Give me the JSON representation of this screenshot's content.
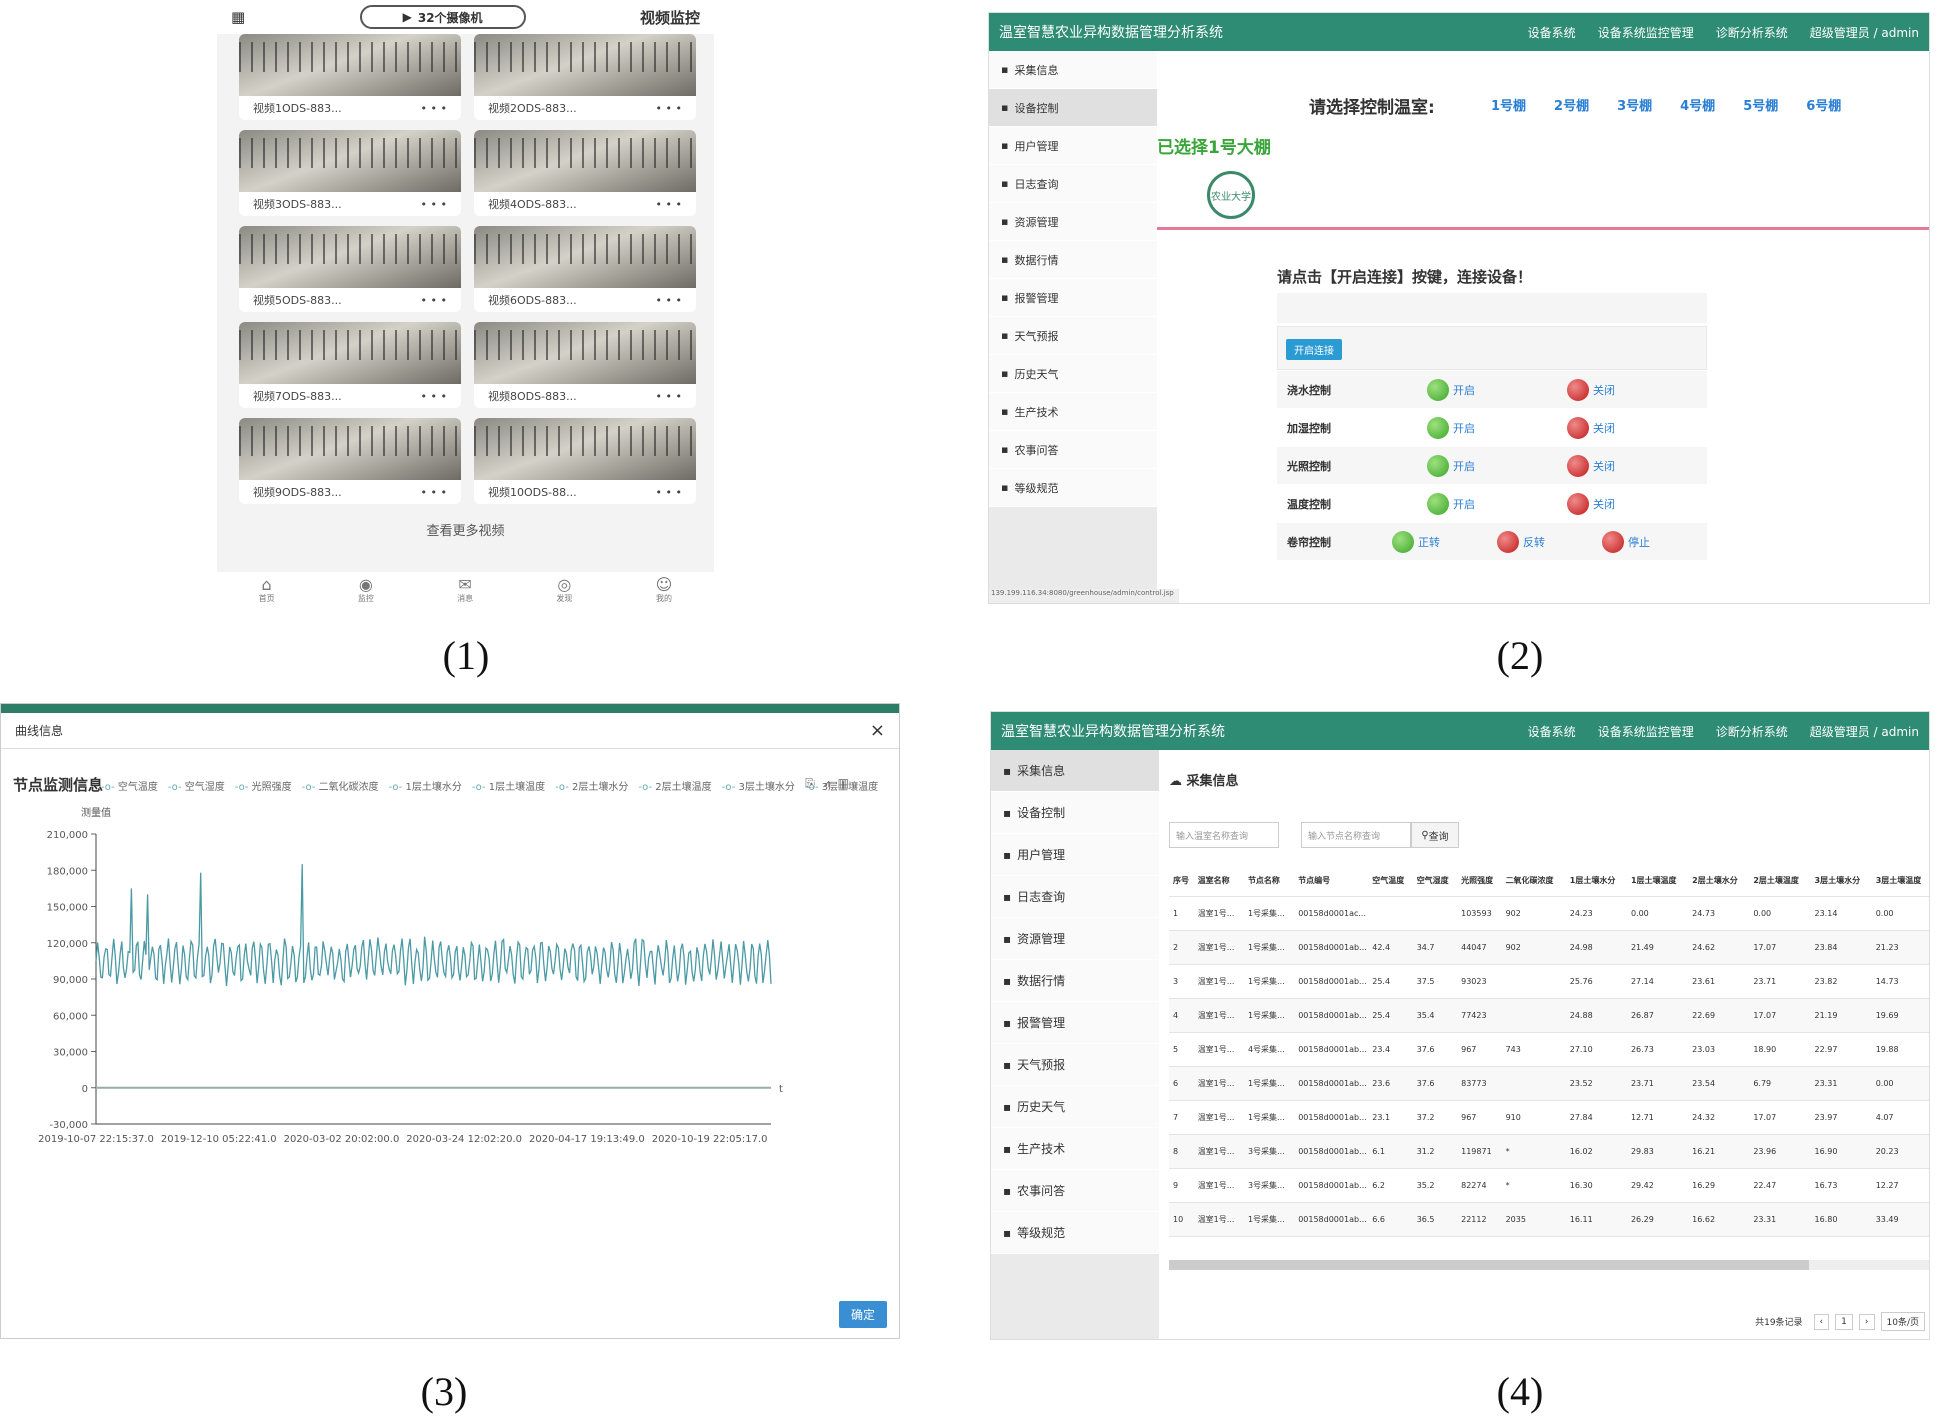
{
  "captions": [
    "(1)",
    "(2)",
    "(3)",
    "(4)"
  ],
  "panel1": {
    "header_title": "视频监控",
    "pill_text": "32个摄像机",
    "grid_icon": "grid-icon",
    "cameras": [
      {
        "label": "视频1ODS-883..."
      },
      {
        "label": "视频2ODS-883..."
      },
      {
        "label": "视频3ODS-883..."
      },
      {
        "label": "视频4ODS-883..."
      },
      {
        "label": "视频5ODS-883..."
      },
      {
        "label": "视频6ODS-883..."
      },
      {
        "label": "视频7ODS-883..."
      },
      {
        "label": "视频8ODS-883..."
      },
      {
        "label": "视频9ODS-883..."
      },
      {
        "label": "视频10ODS-88..."
      }
    ],
    "dots": "• • •",
    "more": "查看更多视频",
    "tabs": [
      {
        "label": "首页",
        "icon": "home-icon"
      },
      {
        "label": "监控",
        "icon": "camera-icon"
      },
      {
        "label": "消息",
        "icon": "message-icon"
      },
      {
        "label": "发现",
        "icon": "eye-icon"
      },
      {
        "label": "我的",
        "icon": "user-icon"
      }
    ]
  },
  "panel2": {
    "system_title": "温室智慧农业异构数据管理分析系统",
    "nav": [
      "设备系统",
      "设备系统监控管理",
      "诊断分析系统",
      "超级管理员 / admin"
    ],
    "sidebar": [
      "采集信息",
      "设备控制",
      "用户管理",
      "日志查询",
      "资源管理",
      "数据行情",
      "报警管理",
      "天气预报",
      "历史天气",
      "生产技术",
      "农事问答",
      "等级规范"
    ],
    "ask": "请选择控制温室:",
    "greenhouses": [
      "1号棚",
      "2号棚",
      "3号棚",
      "4号棚",
      "5号棚",
      "6号棚"
    ],
    "selected": "已选择1号大棚",
    "logo_text": "农业大学",
    "msg": "请点击【开启连接】按键，连接设备！",
    "open_btn": "开启连接",
    "controls": [
      {
        "name": "浇水控制",
        "on": "开启",
        "off": "关闭"
      },
      {
        "name": "加湿控制",
        "on": "开启",
        "off": "关闭"
      },
      {
        "name": "光照控制",
        "on": "开启",
        "off": "关闭"
      },
      {
        "name": "温度控制",
        "on": "开启",
        "off": "关闭"
      },
      {
        "name": "卷帘控制",
        "on": "正转",
        "off": "反转",
        "stop": "停止"
      }
    ],
    "url": "139.199.116.34:8080/greenhouse/admin/control.jsp"
  },
  "panel3": {
    "dialog_title": "曲线信息",
    "close": "×",
    "chart_title": "节点监测信息",
    "legend": [
      "空气温度",
      "空气湿度",
      "光照强度",
      "二氧化碳浓度",
      "1层土壤水分",
      "1层土壤温度",
      "2层土壤水分",
      "2层土壤温度",
      "3层土壤水分",
      "3层土壤温度"
    ],
    "ok": "确定",
    "chart_data": {
      "type": "line",
      "title": "节点监测信息",
      "ylabel": "测量值",
      "xlabel": "t",
      "ylim": [
        -30000,
        210000
      ],
      "yticks": [
        "210,000",
        "180,000",
        "150,000",
        "120,000",
        "90,000",
        "60,000",
        "30,000",
        "0",
        "-30,000"
      ],
      "xticks": [
        "2019-10-07 22:15:37.0",
        "2019-12-10 05:22:41.0",
        "2020-03-02 20:02:00.0",
        "2020-03-24 12:02:20.0",
        "2020-04-17 19:13:49.0",
        "2020-10-19 22:05:17.0"
      ],
      "series": [
        {
          "name": "光照强度",
          "color": "#4a9aa5",
          "range": [
            90000,
            120000
          ],
          "peaks": [
            165000,
            160000,
            178000,
            185000
          ]
        },
        {
          "name": "空气温度",
          "color": "#8aa",
          "values_constant": 0
        }
      ]
    }
  },
  "panel4": {
    "system_title": "温室智慧农业异构数据管理分析系统",
    "nav": [
      "设备系统",
      "设备系统监控管理",
      "诊断分析系统",
      "超级管理员 / admin"
    ],
    "sidebar": [
      "采集信息",
      "设备控制",
      "用户管理",
      "日志查询",
      "资源管理",
      "数据行情",
      "报警管理",
      "天气预报",
      "历史天气",
      "生产技术",
      "农事问答",
      "等级规范"
    ],
    "section": "采集信息",
    "search1": "输入温室名称查询",
    "search2": "输入节点名称查询",
    "search_btn": "查询",
    "columns": [
      "序号",
      "温室名称",
      "节点名称",
      "节点编号",
      "空气温度",
      "空气湿度",
      "光照强度",
      "二氧化碳浓度",
      "1层土壤水分",
      "1层土壤温度",
      "2层土壤水分",
      "2层土壤温度",
      "3层土壤水分",
      "3层土壤温度"
    ],
    "rows": [
      [
        "1",
        "温室1号...",
        "1号采集...",
        "00158d0001ac...",
        "",
        "",
        "103593",
        "902",
        "24.23",
        "0.00",
        "24.73",
        "0.00",
        "23.14",
        "0.00"
      ],
      [
        "2",
        "温室1号...",
        "1号采集...",
        "00158d0001ab...",
        "42.4",
        "34.7",
        "44047",
        "902",
        "24.98",
        "21.49",
        "24.62",
        "17.07",
        "23.84",
        "21.23"
      ],
      [
        "3",
        "温室1号...",
        "1号采集...",
        "00158d0001ab...",
        "25.4",
        "37.5",
        "93023",
        "",
        "25.76",
        "27.14",
        "23.61",
        "23.71",
        "23.82",
        "14.73"
      ],
      [
        "4",
        "温室1号...",
        "1号采集...",
        "00158d0001ab...",
        "25.4",
        "35.4",
        "77423",
        "",
        "24.88",
        "26.87",
        "22.69",
        "17.07",
        "21.19",
        "19.69"
      ],
      [
        "5",
        "温室1号...",
        "4号采集...",
        "00158d0001ab...",
        "23.4",
        "37.6",
        "967",
        "743",
        "27.10",
        "26.73",
        "23.03",
        "18.90",
        "22.97",
        "19.88"
      ],
      [
        "6",
        "温室1号...",
        "1号采集...",
        "00158d0001ab...",
        "23.6",
        "37.6",
        "83773",
        "",
        "23.52",
        "23.71",
        "23.54",
        "6.79",
        "23.31",
        "0.00"
      ],
      [
        "7",
        "温室1号...",
        "1号采集...",
        "00158d0001ab...",
        "23.1",
        "37.2",
        "967",
        "910",
        "27.84",
        "12.71",
        "24.32",
        "17.07",
        "23.97",
        "4.07"
      ],
      [
        "8",
        "温室1号...",
        "3号采集...",
        "00158d0001ab...",
        "6.1",
        "31.2",
        "119871",
        "*",
        "16.02",
        "29.83",
        "16.21",
        "23.96",
        "16.90",
        "20.23"
      ],
      [
        "9",
        "温室1号...",
        "3号采集...",
        "00158d0001ab...",
        "6.2",
        "35.2",
        "82274",
        "*",
        "16.30",
        "29.42",
        "16.29",
        "22.47",
        "16.73",
        "12.27"
      ],
      [
        "10",
        "温室1号...",
        "1号采集...",
        "00158d0001ab...",
        "6.6",
        "36.5",
        "22112",
        "2035",
        "16.11",
        "26.29",
        "16.62",
        "23.31",
        "16.80",
        "33.49"
      ]
    ],
    "pager_total": "共19条记录",
    "pager_prev": "‹",
    "pager_page": "1",
    "pager_next": "›",
    "pager_size": "10条/页"
  }
}
